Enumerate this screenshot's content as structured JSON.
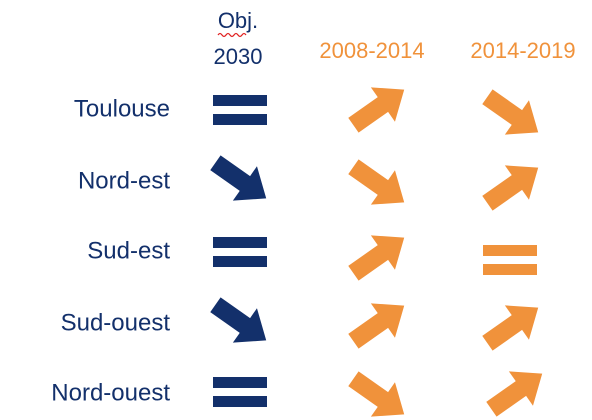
{
  "header": {
    "objective": [
      "Obj.",
      "2030"
    ],
    "periods": [
      "2008-2014",
      "2014-2019"
    ]
  },
  "rows": [
    "Toulouse",
    "Nord-est",
    "Sud-est",
    "Sud-ouest",
    "Nord-ouest"
  ]
}
